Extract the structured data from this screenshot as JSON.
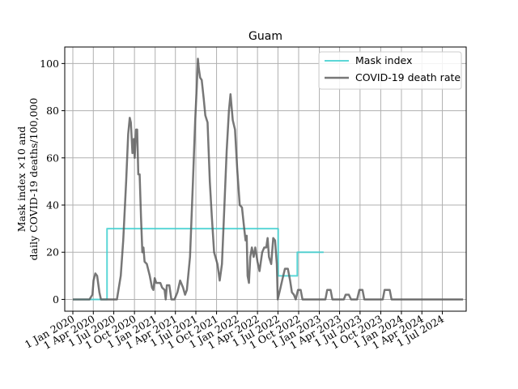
{
  "chart_data": {
    "type": "line",
    "title": "Guam",
    "xlabel": "",
    "ylabel_lines": [
      "Mask index ×10 and",
      "daily COVID-19 deaths/100,000"
    ],
    "x_ticks": [
      "1 Jan 2020",
      "1 Apr 2020",
      "1 Jul 2020",
      "1 Oct 2020",
      "1 Jan 2021",
      "1 Apr 2021",
      "1 Jul 2021",
      "1 Oct 2021",
      "1 Jan 2022",
      "1 Apr 2022",
      "1 Jul 2022",
      "1 Oct 2022",
      "1 Jan 2023",
      "1 Apr 2023",
      "1 Jul 2023",
      "1 Oct 2023",
      "1 Jan 2024",
      "1 Apr 2024",
      "1 Jul 2024"
    ],
    "y_ticks": [
      "0",
      "20",
      "40",
      "60",
      "80",
      "100"
    ],
    "ylim": [
      -5,
      107
    ],
    "xlim": [
      "2019-11-26",
      "2024-10-15"
    ],
    "grid": true,
    "legend_position": "top-right",
    "colors": {
      "mask": "#40d0d0",
      "deaths": "#555555"
    },
    "series": [
      {
        "name": "Mask index",
        "step": true,
        "points": [
          [
            "2020-01-01",
            0
          ],
          [
            "2020-06-01",
            0
          ],
          [
            "2020-06-01",
            30
          ],
          [
            "2022-07-02",
            30
          ],
          [
            "2022-07-02",
            10
          ],
          [
            "2022-09-25",
            10
          ],
          [
            "2022-09-25",
            20
          ],
          [
            "2023-01-20",
            20
          ]
        ]
      },
      {
        "name": "COVID-19 death rate",
        "points": [
          [
            "2020-01-01",
            0
          ],
          [
            "2020-03-15",
            0
          ],
          [
            "2020-03-28",
            2
          ],
          [
            "2020-04-02",
            8
          ],
          [
            "2020-04-10",
            11
          ],
          [
            "2020-04-18",
            10
          ],
          [
            "2020-04-28",
            3
          ],
          [
            "2020-05-05",
            0
          ],
          [
            "2020-06-25",
            0
          ],
          [
            "2020-07-15",
            0
          ],
          [
            "2020-08-01",
            10
          ],
          [
            "2020-08-12",
            25
          ],
          [
            "2020-08-25",
            50
          ],
          [
            "2020-09-03",
            70
          ],
          [
            "2020-09-10",
            77
          ],
          [
            "2020-09-15",
            75
          ],
          [
            "2020-09-22",
            62
          ],
          [
            "2020-09-28",
            68
          ],
          [
            "2020-10-02",
            60
          ],
          [
            "2020-10-08",
            72
          ],
          [
            "2020-10-13",
            72
          ],
          [
            "2020-10-18",
            53
          ],
          [
            "2020-10-24",
            53
          ],
          [
            "2020-10-30",
            35
          ],
          [
            "2020-11-05",
            20
          ],
          [
            "2020-11-10",
            22
          ],
          [
            "2020-11-15",
            16
          ],
          [
            "2020-11-25",
            15
          ],
          [
            "2020-12-08",
            10
          ],
          [
            "2020-12-18",
            5
          ],
          [
            "2020-12-24",
            4
          ],
          [
            "2020-12-30",
            9
          ],
          [
            "2021-01-06",
            7
          ],
          [
            "2021-01-14",
            7
          ],
          [
            "2021-01-24",
            7
          ],
          [
            "2021-02-01",
            5
          ],
          [
            "2021-02-12",
            4
          ],
          [
            "2021-02-17",
            0
          ],
          [
            "2021-02-22",
            6
          ],
          [
            "2021-03-05",
            6
          ],
          [
            "2021-03-14",
            0
          ],
          [
            "2021-03-28",
            0
          ],
          [
            "2021-04-10",
            3
          ],
          [
            "2021-04-22",
            8
          ],
          [
            "2021-05-05",
            5
          ],
          [
            "2021-05-14",
            2
          ],
          [
            "2021-05-22",
            4
          ],
          [
            "2021-06-05",
            18
          ],
          [
            "2021-06-18",
            50
          ],
          [
            "2021-06-28",
            76
          ],
          [
            "2021-07-05",
            90
          ],
          [
            "2021-07-10",
            102
          ],
          [
            "2021-07-14",
            98
          ],
          [
            "2021-07-20",
            94
          ],
          [
            "2021-07-27",
            93
          ],
          [
            "2021-08-05",
            85
          ],
          [
            "2021-08-12",
            78
          ],
          [
            "2021-08-22",
            75
          ],
          [
            "2021-09-01",
            50
          ],
          [
            "2021-09-10",
            35
          ],
          [
            "2021-09-20",
            20
          ],
          [
            "2021-10-05",
            15
          ],
          [
            "2021-10-15",
            8
          ],
          [
            "2021-10-25",
            15
          ],
          [
            "2021-11-05",
            40
          ],
          [
            "2021-11-15",
            63
          ],
          [
            "2021-11-25",
            80
          ],
          [
            "2021-12-02",
            87
          ],
          [
            "2021-12-12",
            76
          ],
          [
            "2021-12-22",
            72
          ],
          [
            "2022-01-01",
            55
          ],
          [
            "2022-01-12",
            40
          ],
          [
            "2022-01-22",
            39
          ],
          [
            "2022-02-01",
            30
          ],
          [
            "2022-02-07",
            25
          ],
          [
            "2022-02-12",
            27
          ],
          [
            "2022-02-16",
            10
          ],
          [
            "2022-02-22",
            7
          ],
          [
            "2022-02-28",
            18
          ],
          [
            "2022-03-07",
            22
          ],
          [
            "2022-03-15",
            18
          ],
          [
            "2022-03-22",
            22
          ],
          [
            "2022-04-01",
            16
          ],
          [
            "2022-04-10",
            12
          ],
          [
            "2022-04-22",
            20
          ],
          [
            "2022-05-01",
            22
          ],
          [
            "2022-05-10",
            22
          ],
          [
            "2022-05-16",
            26
          ],
          [
            "2022-05-22",
            18
          ],
          [
            "2022-06-01",
            15
          ],
          [
            "2022-06-10",
            26
          ],
          [
            "2022-06-18",
            25
          ],
          [
            "2022-06-26",
            15
          ],
          [
            "2022-06-30",
            0
          ],
          [
            "2022-07-10",
            4
          ],
          [
            "2022-07-22",
            9
          ],
          [
            "2022-08-01",
            13
          ],
          [
            "2022-08-14",
            13
          ],
          [
            "2022-08-24",
            8
          ],
          [
            "2022-09-01",
            3
          ],
          [
            "2022-09-10",
            2
          ],
          [
            "2022-09-18",
            0
          ],
          [
            "2022-09-28",
            4
          ],
          [
            "2022-10-10",
            4
          ],
          [
            "2022-10-18",
            0
          ],
          [
            "2023-01-28",
            0
          ],
          [
            "2023-02-05",
            4
          ],
          [
            "2023-02-20",
            4
          ],
          [
            "2023-02-28",
            0
          ],
          [
            "2023-04-20",
            0
          ],
          [
            "2023-04-28",
            2
          ],
          [
            "2023-05-12",
            2
          ],
          [
            "2023-05-22",
            0
          ],
          [
            "2023-06-18",
            0
          ],
          [
            "2023-06-28",
            4
          ],
          [
            "2023-07-12",
            4
          ],
          [
            "2023-07-20",
            0
          ],
          [
            "2023-10-10",
            0
          ],
          [
            "2023-10-18",
            4
          ],
          [
            "2023-11-10",
            4
          ],
          [
            "2023-11-18",
            0
          ],
          [
            "2024-10-01",
            0
          ]
        ]
      }
    ]
  }
}
